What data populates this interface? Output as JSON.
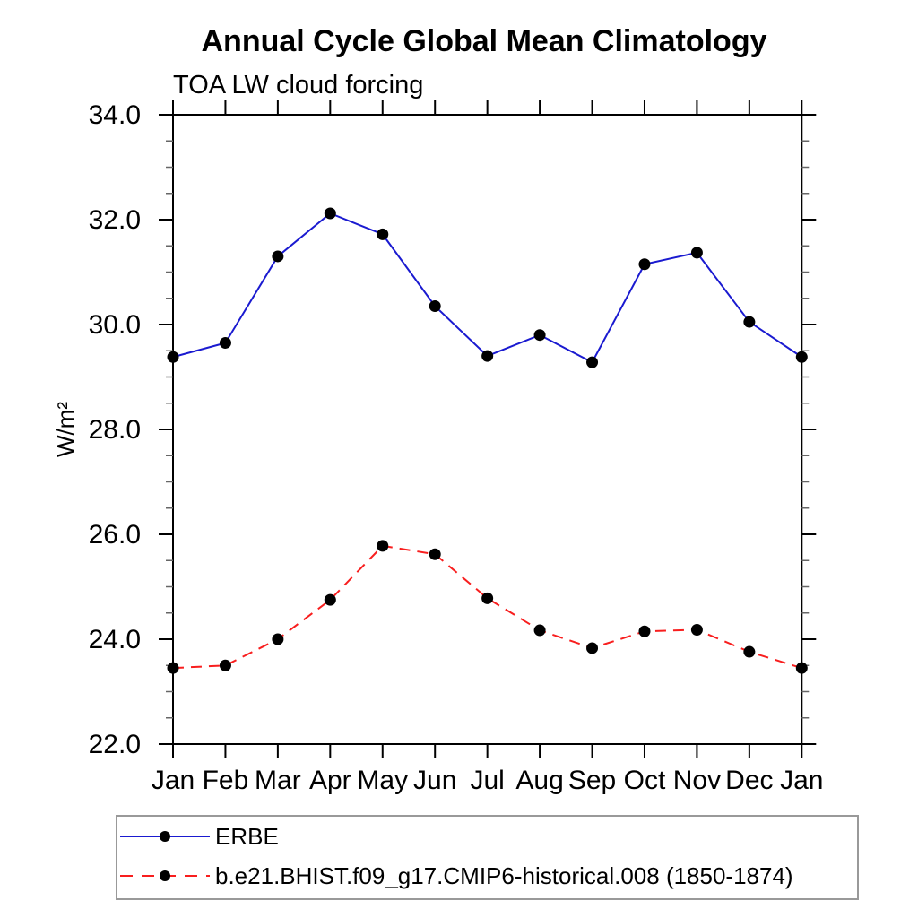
{
  "chart_data": {
    "type": "line",
    "title": "Annual Cycle Global Mean Climatology",
    "subtitle": "TOA LW cloud forcing",
    "ylabel": "W/m²",
    "xlabel": "",
    "x_categories": [
      "Jan",
      "Feb",
      "Mar",
      "Apr",
      "May",
      "Jun",
      "Jul",
      "Aug",
      "Sep",
      "Oct",
      "Nov",
      "Dec",
      "Jan"
    ],
    "ylim": [
      22.0,
      34.0
    ],
    "ytick_step": 2.0,
    "ytick_minor_step": 0.5,
    "ytick_labels": [
      "22.0",
      "24.0",
      "26.0",
      "28.0",
      "30.0",
      "32.0",
      "34.0"
    ],
    "grid": "off",
    "legend_position": "bottom-left",
    "axis_color": "#000000",
    "minor_tick_color": "#666666",
    "legend_border_color": "#999999",
    "marker_color": "#000000",
    "series": [
      {
        "name": "ERBE",
        "color": "#1a1ad0",
        "line_style": "solid",
        "marker": "filled-circle",
        "values": [
          29.38,
          29.65,
          31.3,
          32.12,
          31.72,
          30.35,
          29.4,
          29.8,
          29.28,
          31.15,
          31.37,
          30.05,
          29.38
        ]
      },
      {
        "name": "b.e21.BHIST.f09_g17.CMIP6-historical.008 (1850-1874)",
        "color": "#f81e1e",
        "line_style": "dashed",
        "marker": "filled-circle",
        "values": [
          23.45,
          23.5,
          24.0,
          24.75,
          25.78,
          25.62,
          24.78,
          24.17,
          23.83,
          24.15,
          24.18,
          23.76,
          23.45
        ]
      }
    ]
  }
}
